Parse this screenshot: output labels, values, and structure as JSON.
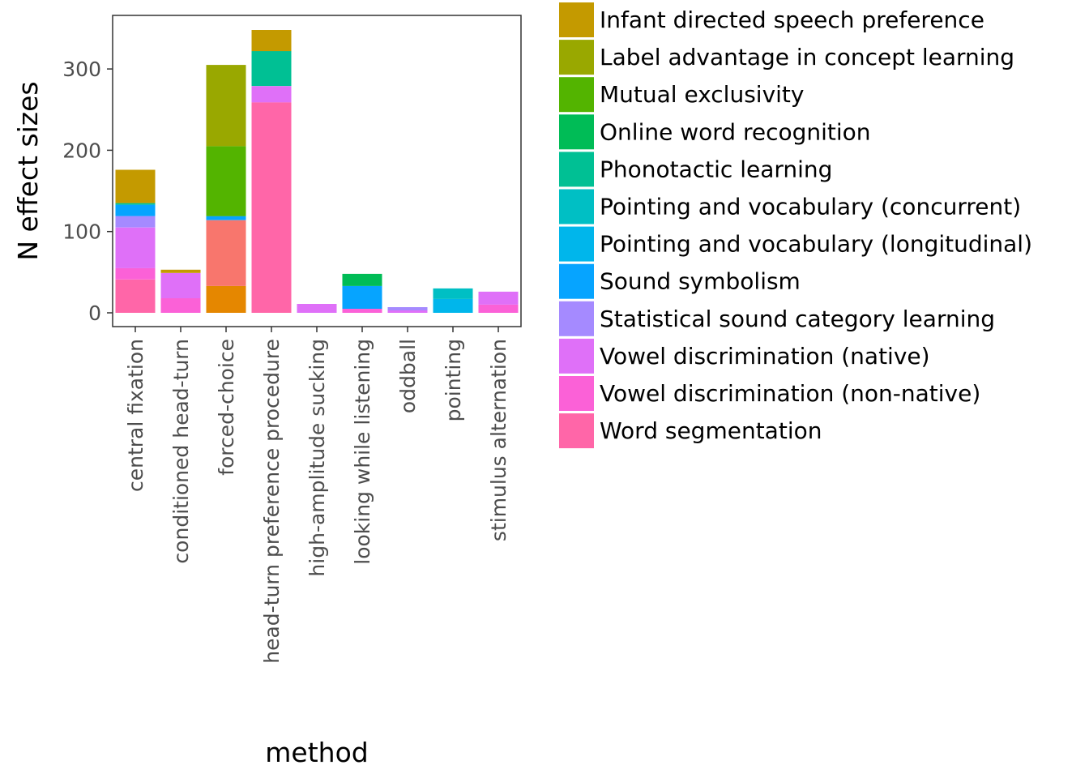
{
  "chart_data": {
    "type": "bar",
    "stacked": true,
    "xlabel": "method",
    "ylabel": "N effect sizes",
    "ylim": [
      0,
      355
    ],
    "yticks": [
      0,
      100,
      200,
      300
    ],
    "grid": false,
    "legend_position": "right",
    "categories": [
      "central fixation",
      "conditioned head-turn",
      "forced-choice",
      "head-turn preference procedure",
      "high-amplitude sucking",
      "looking while listening",
      "oddball",
      "pointing",
      "stimulus alternation"
    ],
    "series": [
      {
        "name": "Infant directed speech preference",
        "color": "#C49A00",
        "values": [
          41,
          4,
          0,
          26,
          0,
          0,
          0,
          0,
          0
        ]
      },
      {
        "name": "Label advantage in concept learning",
        "color": "#99A800",
        "values": [
          0,
          0,
          100,
          0,
          0,
          0,
          0,
          0,
          0
        ]
      },
      {
        "name": "Mutual exclusivity",
        "color": "#53B400",
        "values": [
          0,
          0,
          86,
          0,
          0,
          0,
          0,
          0,
          0
        ]
      },
      {
        "name": "Online word recognition",
        "color": "#00BC56",
        "values": [
          0,
          0,
          0,
          0,
          0,
          15,
          0,
          0,
          0
        ]
      },
      {
        "name": "Phonotactic learning",
        "color": "#00C094",
        "values": [
          2,
          0,
          0,
          43,
          0,
          0,
          0,
          0,
          0
        ]
      },
      {
        "name": "Pointing and vocabulary (concurrent)",
        "color": "#00BFC4",
        "values": [
          0,
          0,
          0,
          0,
          0,
          0,
          0,
          13,
          0
        ]
      },
      {
        "name": "Pointing and vocabulary (longitudinal)",
        "color": "#00B6EB",
        "values": [
          0,
          0,
          0,
          0,
          0,
          0,
          0,
          17,
          0
        ]
      },
      {
        "name": "Sound symbolism",
        "color": "#06A4FF",
        "values": [
          14,
          0,
          5,
          0,
          0,
          28,
          0,
          0,
          0
        ]
      },
      {
        "name": "Statistical sound category learning",
        "color": "#A58AFF",
        "values": [
          14,
          0,
          0,
          0,
          0,
          0,
          4,
          0,
          0
        ]
      },
      {
        "name": "Vowel discrimination (native)",
        "color": "#DF70F8",
        "values": [
          50,
          31,
          0,
          20,
          11,
          0,
          3,
          0,
          16
        ]
      },
      {
        "name": "Vowel discrimination (non-native)",
        "color": "#FB61D7",
        "values": [
          14,
          18,
          0,
          0,
          0,
          5,
          0,
          0,
          10
        ]
      },
      {
        "name": "Word segmentation",
        "color": "#FF66A8",
        "values": [
          41,
          0,
          0,
          259,
          0,
          0,
          0,
          0,
          0
        ]
      },
      {
        "name": "",
        "color": "#F8766D",
        "values": [
          0,
          0,
          81,
          0,
          0,
          0,
          0,
          0,
          0
        ]
      },
      {
        "name": "",
        "color": "#E58700",
        "values": [
          0,
          0,
          33,
          0,
          0,
          0,
          0,
          0,
          0
        ]
      }
    ]
  }
}
